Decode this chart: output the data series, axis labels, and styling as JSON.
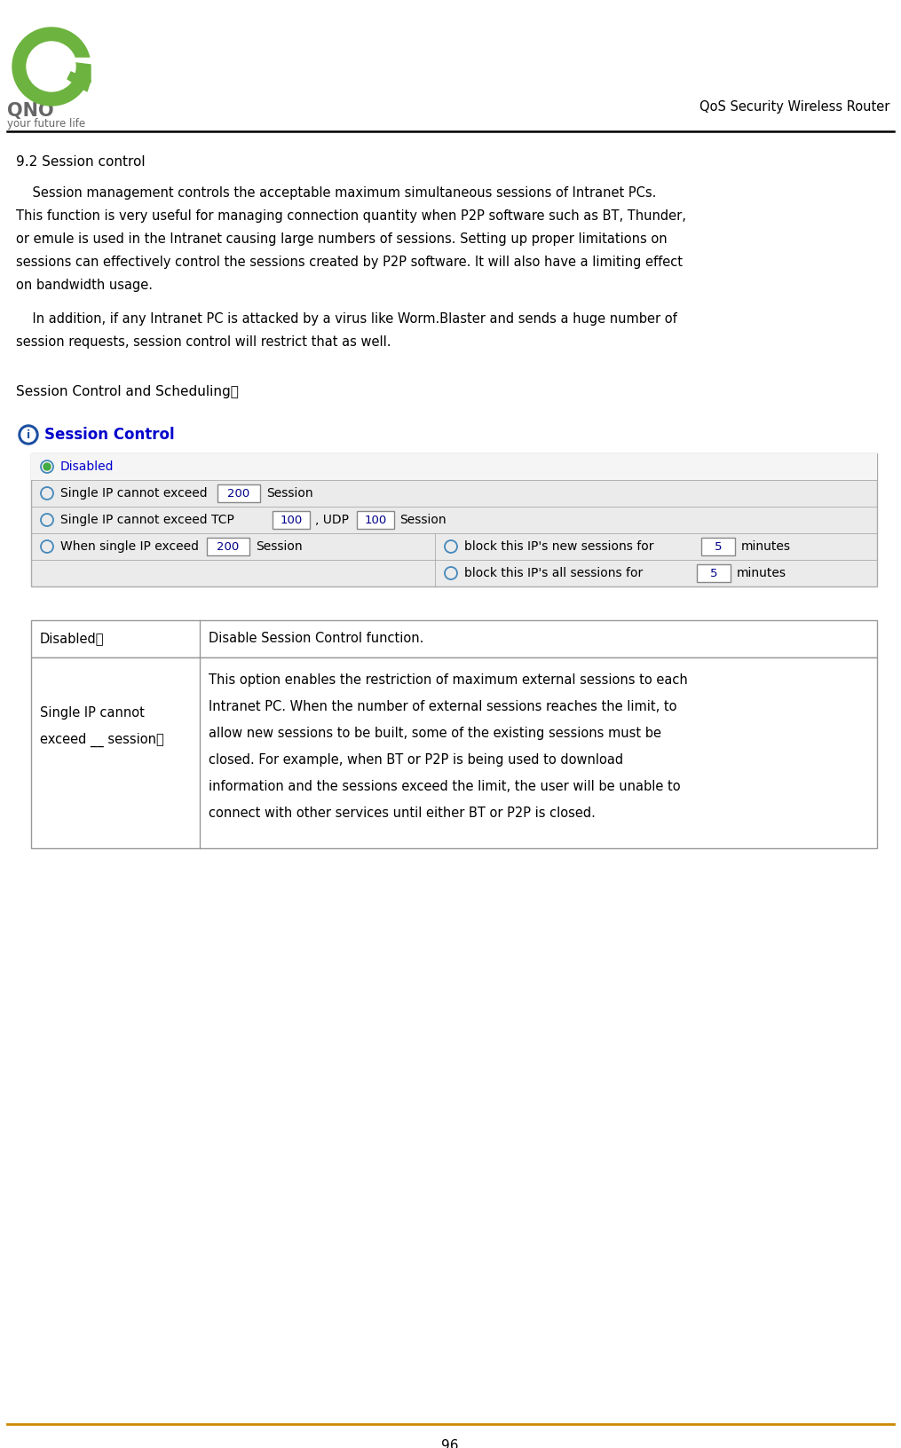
{
  "title_right": "QoS Security Wireless Router",
  "section_title": "9.2 Session control",
  "para1_lines": [
    "    Session management controls the acceptable maximum simultaneous sessions of Intranet PCs.",
    "This function is very useful for managing connection quantity when P2P software such as BT, Thunder,",
    "or emule is used in the Intranet causing large numbers of sessions. Setting up proper limitations on",
    "sessions can effectively control the sessions created by P2P software. It will also have a limiting effect",
    "on bandwidth usage."
  ],
  "para2_lines": [
    "    In addition, if any Intranet PC is attacked by a virus like Worm.Blaster and sends a huge number of",
    "session requests, session control will restrict that as well."
  ],
  "section_label": "Session Control and Scheduling：",
  "ui_title": "Session Control",
  "page_number": "96",
  "bg_color": "#FFFFFF",
  "text_color": "#000000",
  "header_line_color": "#000000",
  "ui_bg_color": "#EBEBEB",
  "ui_row0_bg": "#F5F5F5",
  "ui_border_color": "#AAAAAA",
  "ui_blue_color": "#0000CC",
  "table_border_color": "#999999",
  "footer_line_color": "#CC8800",
  "logo_green": "#6DB33F",
  "logo_gray": "#666666",
  "icon_blue": "#1A4FA0",
  "radio_border": "#4488BB",
  "radio_fill": "#44AA44",
  "input_border": "#888888",
  "input_text": "#000088"
}
